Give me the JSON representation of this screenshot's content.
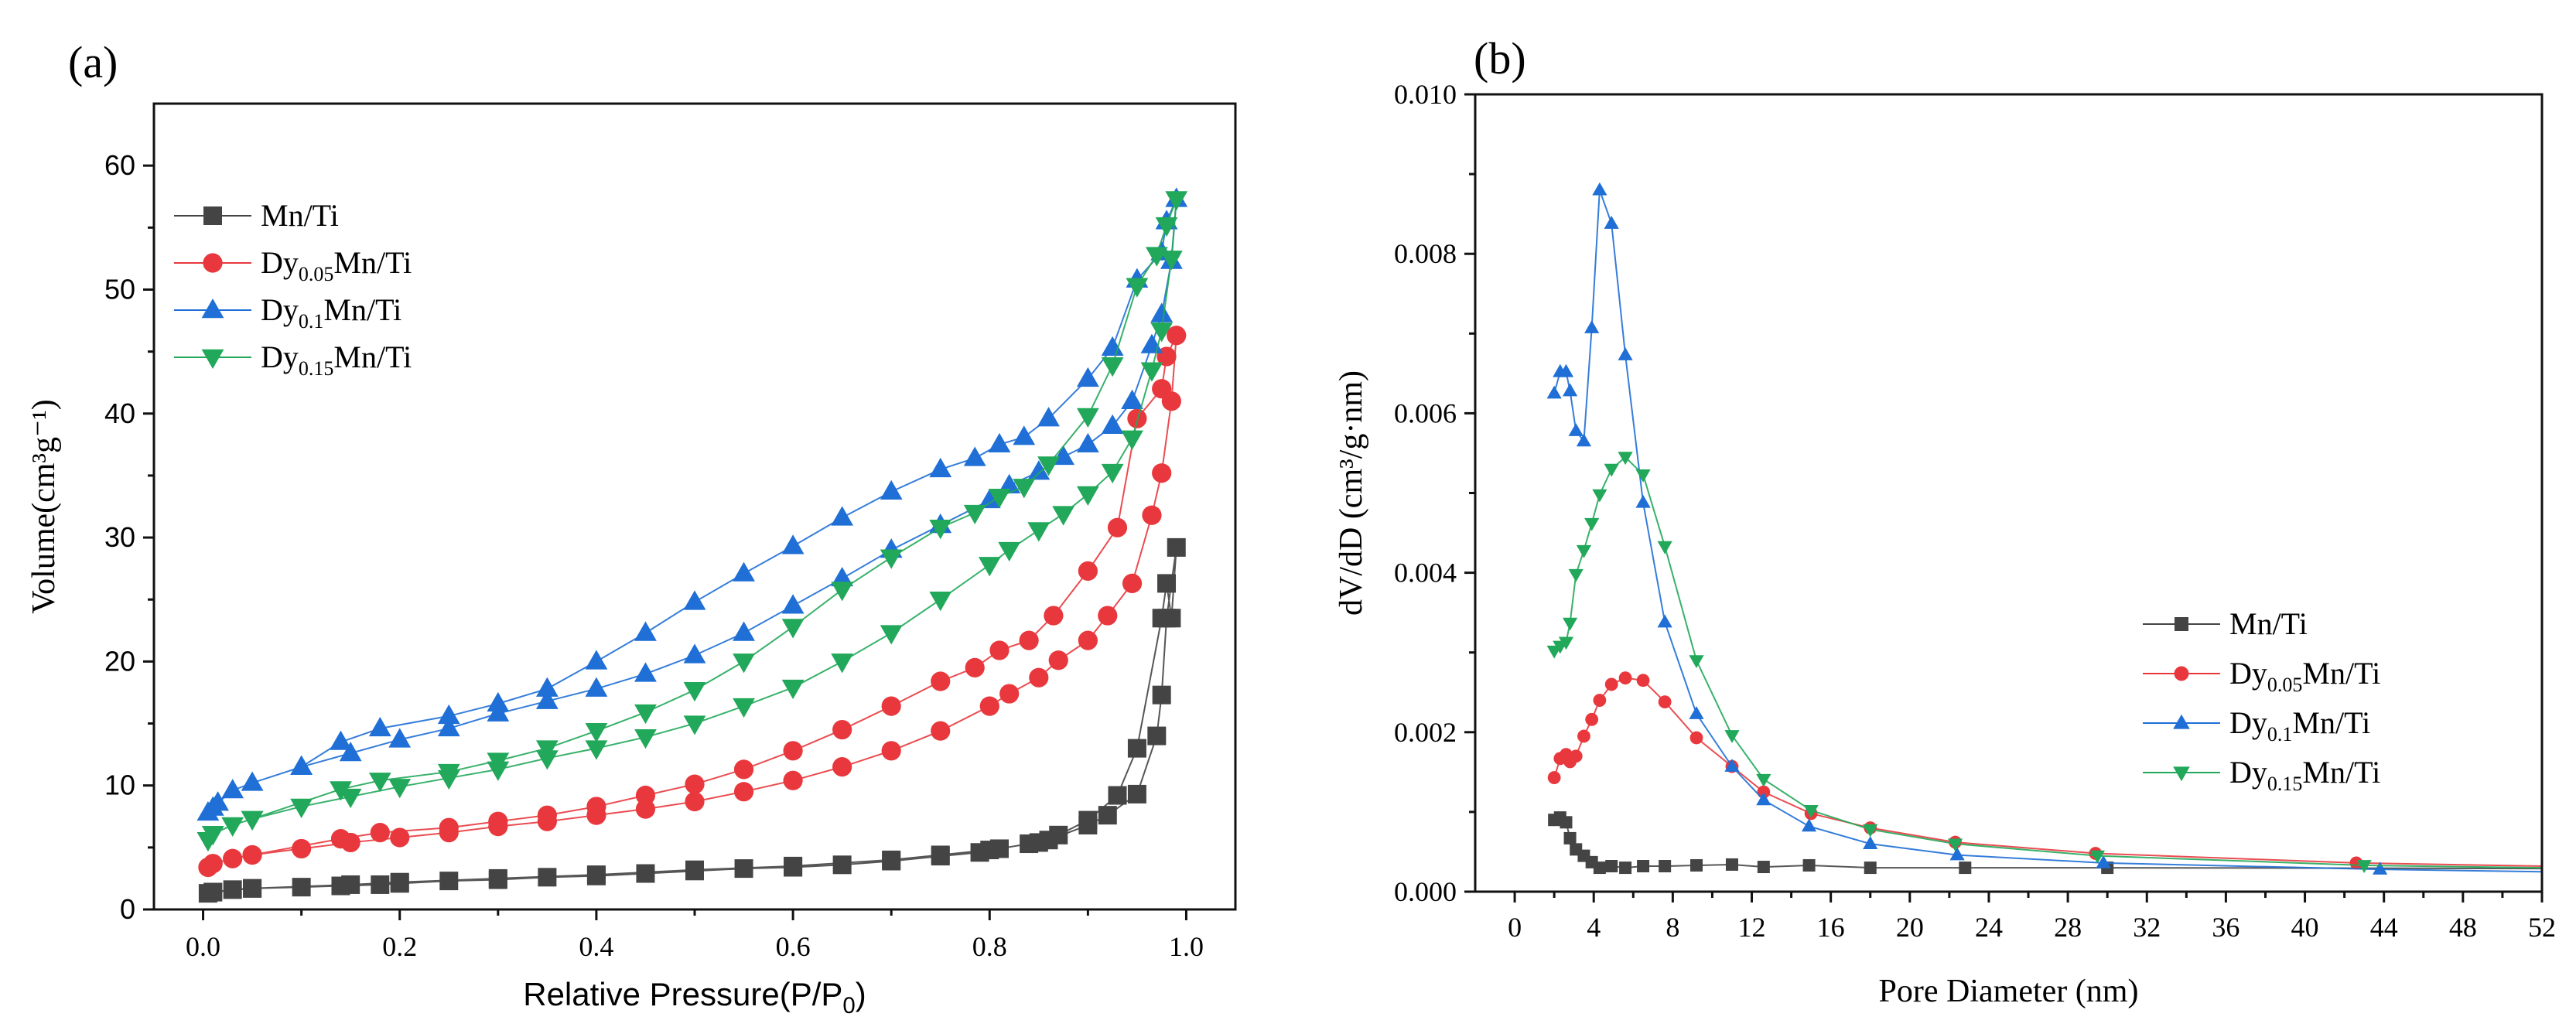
{
  "chart_data": [
    {
      "type": "line",
      "panel_label": "(a)",
      "xlabel": "Relative Pressure(P/P",
      "xlabel_sub": "0",
      "xlabel_end": ")",
      "ylabel": "Volume(cm³g⁻¹)",
      "xlim": [
        -0.05,
        1.05
      ],
      "ylim": [
        0,
        65
      ],
      "xticks": [
        0.0,
        0.2,
        0.4,
        0.6,
        0.8,
        1.0
      ],
      "xtick_labels": [
        "0.0",
        "0.2",
        "0.4",
        "0.6",
        "0.8",
        "1.0"
      ],
      "yticks": [
        0,
        10,
        20,
        30,
        40,
        50,
        60
      ],
      "ytick_labels": [
        "0",
        "10",
        "20",
        "30",
        "40",
        "50",
        "60"
      ],
      "grid": false,
      "legend_placement": "top-left",
      "series": [
        {
          "name": "Mn/Ti",
          "base": "Mn/Ti",
          "sub": "",
          "rest": "",
          "color": "#444444",
          "marker": "square",
          "x": [
            0.005,
            0.01,
            0.03,
            0.05,
            0.1,
            0.14,
            0.18,
            0.2,
            0.25,
            0.3,
            0.35,
            0.4,
            0.45,
            0.5,
            0.55,
            0.6,
            0.65,
            0.7,
            0.75,
            0.79,
            0.81,
            0.84,
            0.86,
            0.9,
            0.92,
            0.95,
            0.97,
            0.975,
            0.98,
            0.99,
            0.985,
            0.98,
            0.975,
            0.95,
            0.93,
            0.9,
            0.87,
            0.85,
            0.8,
            0.75,
            0.7,
            0.6,
            0.5,
            0.4,
            0.3,
            0.2,
            0.15,
            0.05,
            0.01
          ],
          "y": [
            1.3,
            1.4,
            1.6,
            1.7,
            1.8,
            1.9,
            2.0,
            2.1,
            2.3,
            2.4,
            2.6,
            2.7,
            2.9,
            3.1,
            3.3,
            3.4,
            3.6,
            3.9,
            4.3,
            4.6,
            4.9,
            5.3,
            5.6,
            6.8,
            7.6,
            9.3,
            14.0,
            17.3,
            23.5,
            29.2,
            23.5,
            26.3,
            23.5,
            13.0,
            9.2,
            7.2,
            6.0,
            5.4,
            4.8,
            4.4,
            4.0,
            3.5,
            3.2,
            2.8,
            2.5,
            2.2,
            2.0,
            1.7,
            1.4
          ]
        },
        {
          "name": "Dy0.05Mn/Ti",
          "base": "Dy",
          "sub": "0.05",
          "rest": "Mn/Ti",
          "color": "#e8383d",
          "marker": "circle",
          "x": [
            0.005,
            0.01,
            0.03,
            0.05,
            0.1,
            0.15,
            0.2,
            0.25,
            0.3,
            0.35,
            0.4,
            0.45,
            0.5,
            0.55,
            0.6,
            0.65,
            0.7,
            0.75,
            0.8,
            0.82,
            0.85,
            0.87,
            0.9,
            0.92,
            0.945,
            0.965,
            0.975,
            0.985,
            0.99,
            0.98,
            0.975,
            0.95,
            0.93,
            0.9,
            0.865,
            0.84,
            0.81,
            0.785,
            0.75,
            0.7,
            0.65,
            0.6,
            0.55,
            0.5,
            0.45,
            0.4,
            0.35,
            0.3,
            0.25,
            0.18,
            0.14,
            0.05
          ],
          "y": [
            3.4,
            3.7,
            4.1,
            4.4,
            4.9,
            5.4,
            5.8,
            6.2,
            6.7,
            7.1,
            7.6,
            8.1,
            8.7,
            9.5,
            10.4,
            11.5,
            12.8,
            14.4,
            16.4,
            17.4,
            18.7,
            20.1,
            21.7,
            23.7,
            26.3,
            31.8,
            35.2,
            41.0,
            46.3,
            44.6,
            42.0,
            39.6,
            30.8,
            27.3,
            23.7,
            21.7,
            20.9,
            19.5,
            18.4,
            16.4,
            14.5,
            12.8,
            11.3,
            10.1,
            9.2,
            8.3,
            7.6,
            7.1,
            6.6,
            6.2,
            5.7,
            4.4
          ]
        },
        {
          "name": "Dy0.1Mn/Ti",
          "base": "Dy",
          "sub": "0.1",
          "rest": "Mn/Ti",
          "color": "#1f6fd6",
          "marker": "triangle-up",
          "x": [
            0.005,
            0.01,
            0.015,
            0.03,
            0.05,
            0.1,
            0.15,
            0.2,
            0.25,
            0.3,
            0.35,
            0.4,
            0.45,
            0.5,
            0.55,
            0.6,
            0.65,
            0.7,
            0.75,
            0.8,
            0.82,
            0.85,
            0.875,
            0.9,
            0.925,
            0.945,
            0.965,
            0.975,
            0.985,
            0.99,
            0.98,
            0.975,
            0.95,
            0.925,
            0.9,
            0.86,
            0.835,
            0.81,
            0.785,
            0.75,
            0.7,
            0.65,
            0.6,
            0.55,
            0.5,
            0.45,
            0.4,
            0.35,
            0.3,
            0.25,
            0.18,
            0.14,
            0.1
          ],
          "y": [
            7.8,
            8.2,
            8.6,
            9.6,
            10.2,
            11.5,
            12.6,
            13.7,
            14.6,
            15.8,
            16.8,
            17.8,
            19.0,
            20.5,
            22.3,
            24.5,
            26.7,
            29.0,
            31.0,
            33.0,
            34.2,
            35.3,
            36.5,
            37.5,
            39.0,
            41.0,
            45.5,
            48.0,
            52.3,
            57.3,
            55.5,
            53.0,
            50.8,
            45.3,
            42.8,
            39.6,
            38.1,
            37.5,
            36.4,
            35.5,
            33.7,
            31.6,
            29.3,
            27.1,
            24.8,
            22.3,
            20.0,
            17.8,
            16.6,
            15.6,
            14.6,
            13.5,
            11.5
          ]
        },
        {
          "name": "Dy0.15Mn/Ti",
          "base": "Dy",
          "sub": "0.15",
          "rest": "Mn/Ti",
          "color": "#22a85a",
          "marker": "triangle-down",
          "x": [
            0.005,
            0.01,
            0.03,
            0.05,
            0.1,
            0.15,
            0.2,
            0.25,
            0.3,
            0.35,
            0.4,
            0.45,
            0.5,
            0.55,
            0.6,
            0.65,
            0.7,
            0.75,
            0.8,
            0.82,
            0.85,
            0.875,
            0.9,
            0.925,
            0.945,
            0.965,
            0.975,
            0.985,
            0.99,
            0.98,
            0.97,
            0.95,
            0.925,
            0.9,
            0.86,
            0.835,
            0.81,
            0.785,
            0.75,
            0.7,
            0.65,
            0.6,
            0.55,
            0.5,
            0.45,
            0.4,
            0.35,
            0.3,
            0.25,
            0.18,
            0.14,
            0.05
          ],
          "y": [
            5.6,
            6.1,
            6.8,
            7.3,
            8.3,
            9.1,
            9.9,
            10.6,
            11.3,
            12.2,
            13.0,
            13.9,
            15.0,
            16.4,
            17.9,
            20.0,
            22.3,
            25.0,
            27.8,
            29.0,
            30.6,
            31.9,
            33.5,
            35.3,
            38.0,
            43.5,
            46.7,
            52.5,
            57.3,
            55.2,
            52.8,
            50.3,
            43.9,
            39.8,
            35.9,
            34.1,
            33.3,
            32.0,
            30.8,
            28.4,
            25.8,
            22.8,
            20.0,
            17.7,
            15.9,
            14.4,
            13.0,
            12.0,
            11.1,
            10.4,
            9.7,
            7.3
          ]
        }
      ]
    },
    {
      "type": "line",
      "panel_label": "(b)",
      "xlabel": "Pore Diameter (nm)",
      "ylabel": "dV/dD (cm³/g·nm)",
      "xlim": [
        -2,
        52
      ],
      "ylim": [
        0,
        0.01
      ],
      "xticks": [
        0,
        4,
        8,
        12,
        16,
        20,
        24,
        28,
        32,
        36,
        40,
        44,
        48,
        52
      ],
      "xtick_labels": [
        "0",
        "4",
        "8",
        "12",
        "16",
        "20",
        "24",
        "28",
        "32",
        "36",
        "40",
        "44",
        "48",
        "52"
      ],
      "yticks": [
        0,
        0.002,
        0.004,
        0.006,
        0.008,
        0.01
      ],
      "ytick_labels": [
        "0.000",
        "0.002",
        "0.004",
        "0.006",
        "0.008",
        "0.010"
      ],
      "grid": false,
      "legend_placement": "bottom-right",
      "series": [
        {
          "name": "Mn/Ti",
          "base": "Mn/Ti",
          "sub": "",
          "rest": "",
          "color": "#444444",
          "marker": "square",
          "x": [
            2.0,
            2.3,
            2.6,
            2.8,
            3.1,
            3.5,
            3.9,
            4.3,
            4.9,
            5.6,
            6.5,
            7.6,
            9.2,
            11,
            12.6,
            14.9,
            18,
            22.8,
            30,
            52
          ],
          "y": [
            0.0009,
            0.00093,
            0.00087,
            0.00067,
            0.00053,
            0.00045,
            0.00037,
            0.0003,
            0.00032,
            0.0003,
            0.00032,
            0.00032,
            0.00033,
            0.00034,
            0.00031,
            0.00033,
            0.0003,
            0.0003,
            0.0003,
            0.00029
          ]
        },
        {
          "name": "Dy0.05Mn/Ti",
          "base": "Dy",
          "sub": "0.05",
          "rest": "Mn/Ti",
          "color": "#e8383d",
          "marker": "circle",
          "x": [
            2.0,
            2.3,
            2.6,
            2.8,
            3.1,
            3.5,
            3.9,
            4.3,
            4.9,
            5.6,
            6.5,
            7.6,
            9.2,
            11,
            12.6,
            15,
            18,
            22.3,
            29.4,
            42.6,
            52
          ],
          "y": [
            0.00143,
            0.00167,
            0.00172,
            0.00163,
            0.0017,
            0.00195,
            0.00216,
            0.0024,
            0.0026,
            0.00268,
            0.00265,
            0.00238,
            0.00193,
            0.00157,
            0.00125,
            0.00098,
            0.0008,
            0.00062,
            0.00048,
            0.00036,
            0.00032
          ]
        },
        {
          "name": "Dy0.1Mn/Ti",
          "base": "Dy",
          "sub": "0.1",
          "rest": "Mn/Ti",
          "color": "#1f6fd6",
          "marker": "triangle-up",
          "x": [
            2.0,
            2.3,
            2.6,
            2.8,
            3.1,
            3.5,
            3.9,
            4.3,
            4.9,
            5.6,
            6.5,
            7.6,
            9.2,
            11,
            12.6,
            14.9,
            18,
            22.4,
            29.8,
            43.8,
            52
          ],
          "y": [
            0.00625,
            0.00652,
            0.00652,
            0.00628,
            0.00578,
            0.00565,
            0.00707,
            0.0088,
            0.00838,
            0.00673,
            0.00488,
            0.00338,
            0.00223,
            0.00157,
            0.00115,
            0.00082,
            0.0006,
            0.00046,
            0.00036,
            0.00028,
            0.00025
          ]
        },
        {
          "name": "Dy0.15Mn/Ti",
          "base": "Dy",
          "sub": "0.15",
          "rest": "Mn/Ti",
          "color": "#22a85a",
          "marker": "triangle-down",
          "x": [
            2.0,
            2.3,
            2.6,
            2.8,
            3.1,
            3.5,
            3.9,
            4.3,
            4.9,
            5.6,
            6.5,
            7.6,
            9.2,
            11,
            12.6,
            15,
            18,
            22.3,
            29.5,
            43,
            52
          ],
          "y": [
            0.00302,
            0.00308,
            0.00313,
            0.00337,
            0.00398,
            0.00428,
            0.00462,
            0.00498,
            0.0053,
            0.00545,
            0.00523,
            0.00433,
            0.0029,
            0.00196,
            0.00141,
            0.00102,
            0.00078,
            0.0006,
            0.00045,
            0.00033,
            0.0003
          ]
        }
      ]
    }
  ]
}
